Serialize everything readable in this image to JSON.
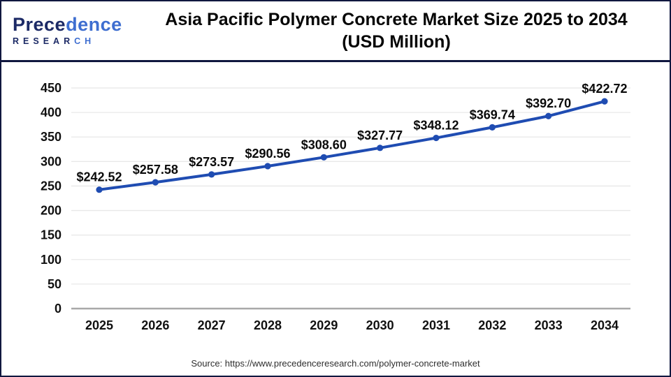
{
  "header": {
    "brand": {
      "name_dark": "Prece",
      "name_light": "dence",
      "sub_dark": "RESEAR",
      "sub_light": "CH"
    },
    "title_line1": "Asia Pacific Polymer Concrete Market Size 2025 to 2034",
    "title_line2": "(USD Million)"
  },
  "chart_data": {
    "type": "line",
    "title": "Asia Pacific Polymer Concrete Market Size 2025 to 2034 (USD Million)",
    "categories": [
      "2025",
      "2026",
      "2027",
      "2028",
      "2029",
      "2030",
      "2031",
      "2032",
      "2033",
      "2034"
    ],
    "series": [
      {
        "name": "Asia Pacific Polymer Concrete Market Size (USD Million)",
        "values": [
          242.52,
          257.58,
          273.57,
          290.56,
          308.6,
          327.77,
          348.12,
          369.74,
          392.7,
          422.72
        ],
        "labels": [
          "$242.52",
          "$257.58",
          "$273.57",
          "$290.56",
          "$308.60",
          "$327.77",
          "$348.12",
          "$369.74",
          "$392.70",
          "$422.72"
        ]
      }
    ],
    "xlabel": "",
    "ylabel": "",
    "ylim": [
      0,
      450
    ],
    "ytick_step": 50,
    "grid": true,
    "legend": "none",
    "line_color": "#1f4cb2",
    "marker_color": "#1f4cb2",
    "grid_color": "#e8e8e8",
    "axis_color": "#a8a8a8",
    "label_color": "#0a0a0a"
  },
  "footer": {
    "source": "Source: https://www.precedenceresearch.com/polymer-concrete-market"
  },
  "colors": {
    "border_navy": "#10173f",
    "background": "#ffffff",
    "brand_dark": "#1c2a66",
    "brand_light": "#3e6ed0"
  }
}
